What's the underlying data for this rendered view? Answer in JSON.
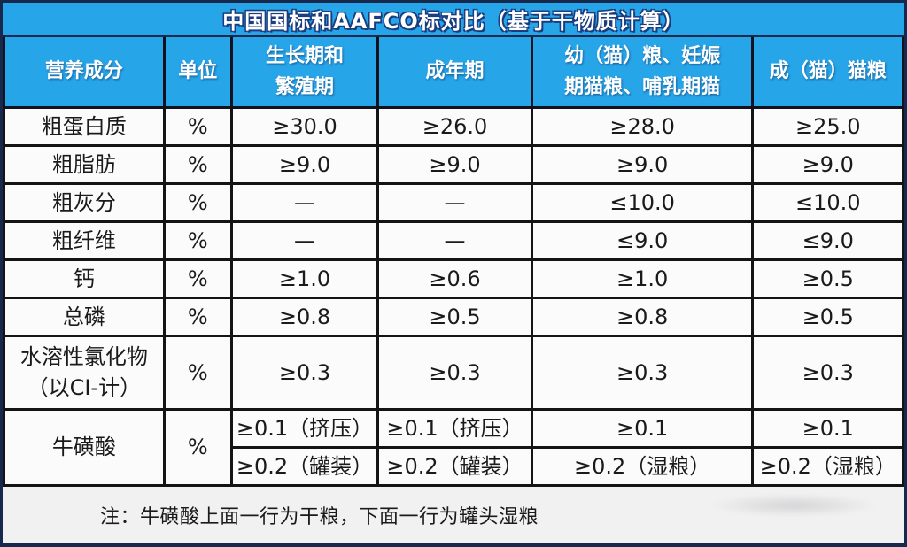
{
  "title": "中国国标和AAFCO标对比（基于干物质计算）",
  "colors": {
    "header_blue": "#27a5e9",
    "outer_border_navy": "#16294d",
    "grid_black": "#141414",
    "cell_bg": "#fbfbfb",
    "note_bg": "#f1f1f1",
    "title_outline_navy": "#1b3c7e"
  },
  "table": {
    "headers": [
      "营养成分",
      "单位",
      "生长期和\n繁殖期",
      "成年期",
      "幼（猫）粮、妊娠\n期猫粮、哺乳期猫",
      "成（猫）猫粮"
    ],
    "rows": [
      {
        "name": "粗蛋白质",
        "unit": "%",
        "values": [
          "≥30.0",
          "≥26.0",
          "≥28.0",
          "≥25.0"
        ]
      },
      {
        "name": "粗脂肪",
        "unit": "%",
        "values": [
          "≥9.0",
          "≥9.0",
          "≥9.0",
          "≥9.0"
        ]
      },
      {
        "name": "粗灰分",
        "unit": "%",
        "values": [
          "—",
          "—",
          "≤10.0",
          "≤10.0"
        ]
      },
      {
        "name": "粗纤维",
        "unit": "%",
        "values": [
          "—",
          "—",
          "≤9.0",
          "≤9.0"
        ]
      },
      {
        "name": "钙",
        "unit": "%",
        "values": [
          "≥1.0",
          "≥0.6",
          "≥1.0",
          "≥0.5"
        ]
      },
      {
        "name": "总磷",
        "unit": "%",
        "values": [
          "≥0.8",
          "≥0.5",
          "≥0.8",
          "≥0.5"
        ]
      },
      {
        "name": "水溶性氯化物\n（以CI-计）",
        "unit": "%",
        "values": [
          "≥0.3",
          "≥0.3",
          "≥0.3",
          "≥0.3"
        ]
      },
      {
        "name": "牛磺酸",
        "unit": "%",
        "sub_rows": [
          [
            "≥0.1（挤压）",
            "≥0.1（挤压）",
            "≥0.1",
            "≥0.1"
          ],
          [
            "≥0.2（罐装）",
            "≥0.2（罐装）",
            "≥0.2（湿粮）",
            "≥0.2（湿粮）"
          ]
        ]
      }
    ],
    "note": "注：牛磺酸上面一行为干粮，下面一行为罐头湿粮"
  }
}
